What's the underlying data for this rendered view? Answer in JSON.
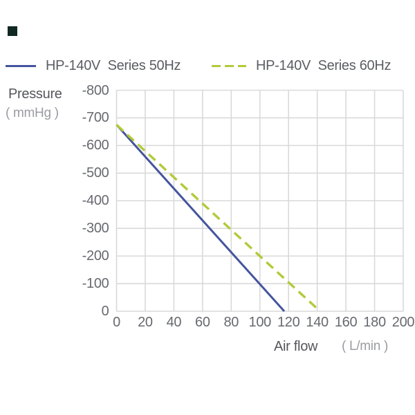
{
  "decoration": {
    "top_left_marker_color": "#112823"
  },
  "legend": {
    "items": [
      {
        "label": "HP-140V  Series 50Hz",
        "color": "#44549e",
        "line_style": "solid"
      },
      {
        "label": "HP-140V  Series 60Hz",
        "color": "#b2ca3a",
        "line_style": "dashed"
      }
    ]
  },
  "y_axis": {
    "title": "Pressure",
    "unit": "( mmHg )"
  },
  "x_axis": {
    "title": "Air flow",
    "unit": "( L/min )"
  },
  "chart_data": {
    "type": "line",
    "title": "",
    "xlabel": "Air flow ( L/min )",
    "ylabel": "Pressure ( mmHg )",
    "xlim": [
      0,
      200
    ],
    "ylim": [
      -800,
      0
    ],
    "x_ticks": [
      0,
      20,
      40,
      60,
      80,
      100,
      120,
      140,
      160,
      180,
      200
    ],
    "y_ticks": [
      -800,
      -700,
      -600,
      -500,
      -400,
      -300,
      -200,
      -100,
      0
    ],
    "grid": true,
    "grid_color": "#d9d9d9",
    "legend_position": "top",
    "series": [
      {
        "name": "HP-140V Series 50Hz",
        "color": "#44549e",
        "style": "solid",
        "points": [
          [
            0,
            -675
          ],
          [
            117,
            0
          ]
        ]
      },
      {
        "name": "HP-140V Series 60Hz",
        "color": "#b2ca3a",
        "style": "dashed",
        "points": [
          [
            0,
            -675
          ],
          [
            142,
            0
          ]
        ]
      }
    ]
  }
}
